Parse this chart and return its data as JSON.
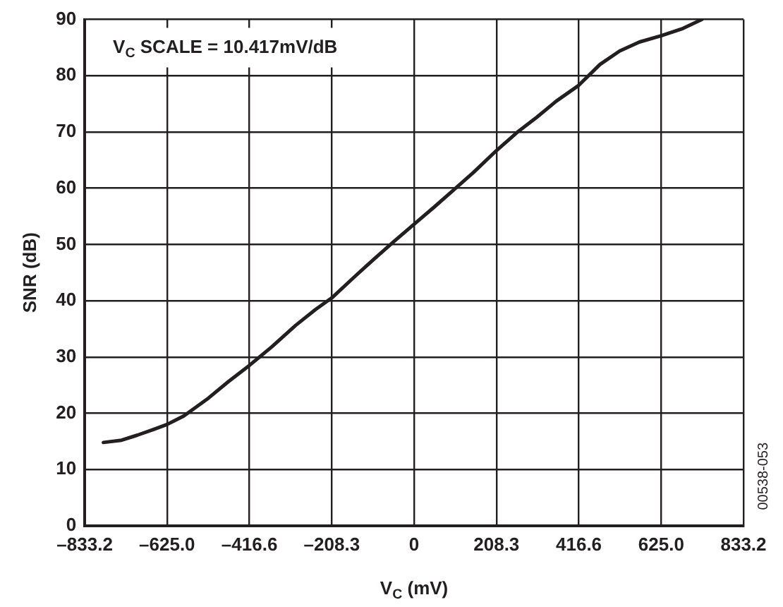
{
  "chart_data": {
    "type": "line",
    "xlabel": "V$_{C}$ (mV)",
    "ylabel": "SNR (dB)",
    "annotations": [
      "V$_{C}$ SCALE = 10.417mV/dB",
      "00538-053"
    ],
    "x": [
      -786,
      -740,
      -700,
      -660,
      -625,
      -583,
      -520,
      -470,
      -416.6,
      -360,
      -300,
      -250,
      -208.3,
      -150,
      -100,
      -50,
      0,
      50,
      100,
      150,
      208.3,
      260,
      310,
      360,
      416.6,
      470,
      520,
      570,
      625,
      680,
      728
    ],
    "series": [
      {
        "color": "#231f20",
        "values": [
          14.8,
          15.2,
          16.1,
          17.1,
          18.0,
          19.5,
          22.7,
          25.6,
          28.5,
          31.8,
          35.6,
          38.4,
          40.5,
          44.3,
          47.5,
          50.6,
          53.6,
          56.6,
          59.7,
          62.8,
          66.7,
          69.9,
          72.6,
          75.5,
          78.3,
          82.0,
          84.4,
          86.0,
          87.1,
          88.4,
          90
        ]
      }
    ],
    "xlim": [
      -833.2,
      833.2
    ],
    "xticks": [
      {
        "value": -833.2,
        "label": "–833.2"
      },
      {
        "value": -625.0,
        "label": "–625.0"
      },
      {
        "value": -416.6,
        "label": "–416.6"
      },
      {
        "value": -208.3,
        "label": "–208.3"
      },
      0,
      208.3,
      416.6,
      {
        "value": 625.0,
        "label": "625.0"
      },
      833.2
    ],
    "ylim": [
      0,
      90
    ],
    "yticks": [
      0,
      10,
      20,
      30,
      40,
      50,
      60,
      70,
      80,
      90
    ],
    "grid": true,
    "legend": false,
    "marker": "none",
    "line_style": "solid"
  }
}
